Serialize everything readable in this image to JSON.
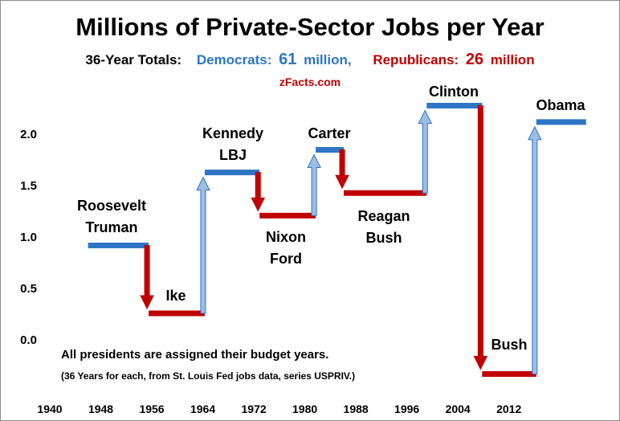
{
  "chart_data": {
    "type": "step-segments",
    "title": "Millions of Private-Sector Jobs per Year",
    "totals": {
      "label": "36-Year Totals:",
      "groups": [
        {
          "name": "Democrats:",
          "value": 61,
          "unit": "million,",
          "color": "#2e75c6"
        },
        {
          "name": "Republicans:",
          "value": 26,
          "unit": "million",
          "color": "#c00000"
        }
      ]
    },
    "source": "zFacts.com",
    "notes": [
      "All presidents are assigned their budget years.",
      "(36 Years for each, from St. Louis Fed jobs data, series USPRIV.)"
    ],
    "segments": [
      {
        "label": [
          "Roosevelt",
          "Truman"
        ],
        "start": 1946.0,
        "end": 1955.5,
        "value": 0.91,
        "color": "#2e75c6"
      },
      {
        "label": [
          "Ike"
        ],
        "start": 1955.5,
        "end": 1964.3,
        "value": 0.25,
        "color": "#c00000"
      },
      {
        "label": [
          "Kennedy",
          "LBJ"
        ],
        "start": 1964.3,
        "end": 1972.9,
        "value": 1.62,
        "color": "#2e75c6"
      },
      {
        "label": [
          "Nixon",
          "Ford"
        ],
        "start": 1972.9,
        "end": 1981.7,
        "value": 1.2,
        "color": "#c00000"
      },
      {
        "label": [
          "Carter"
        ],
        "start": 1981.7,
        "end": 1986.1,
        "value": 1.84,
        "color": "#2e75c6"
      },
      {
        "label": [
          "Reagan",
          "Bush"
        ],
        "start": 1986.1,
        "end": 1999.1,
        "value": 1.42,
        "color": "#c00000"
      },
      {
        "label": [
          "Clinton"
        ],
        "start": 1999.1,
        "end": 2007.8,
        "value": 2.27,
        "color": "#2e75c6"
      },
      {
        "label": [
          "Bush"
        ],
        "start": 2007.8,
        "end": 2016.3,
        "value": -0.34,
        "color": "#c00000"
      },
      {
        "label": [
          "Obama"
        ],
        "start": 2016.3,
        "end": 2024.1,
        "value": 2.11,
        "color": "#2e75c6"
      }
    ],
    "xlim": [
      1940,
      2026
    ],
    "xticks": [
      1940,
      1948,
      1956,
      1964,
      1972,
      1980,
      1988,
      1996,
      2004,
      2012
    ],
    "ylim": [
      -0.5,
      2.5
    ],
    "yticks": [
      {
        "value": 0,
        "label": "0.0"
      },
      0.5,
      {
        "value": 1,
        "label": "1.0"
      },
      1.5,
      {
        "value": 2,
        "label": "2.0"
      }
    ]
  }
}
